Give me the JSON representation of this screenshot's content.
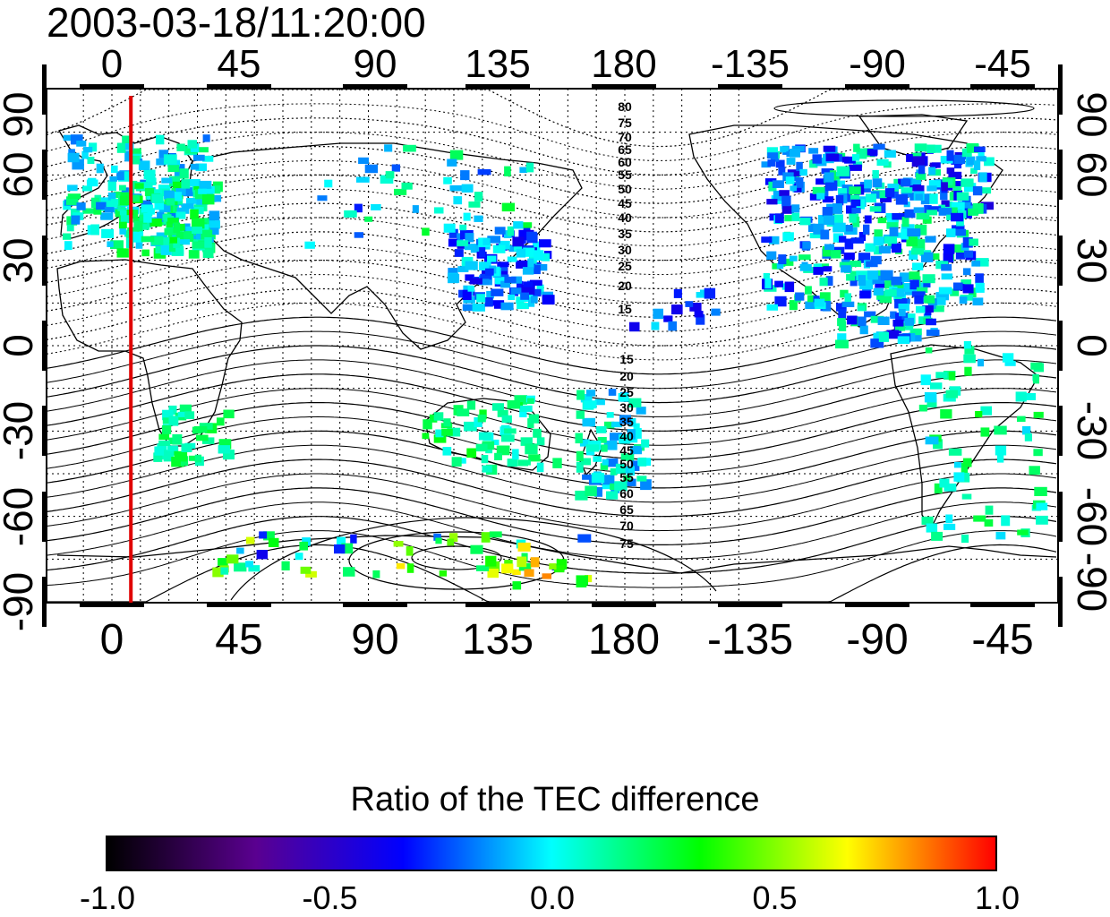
{
  "title": "2003-03-18/11:20:00",
  "colorbar": {
    "title": "Ratio of the TEC difference",
    "ticks": [
      "-1.0",
      "-0.5",
      "0.0",
      "0.5",
      "1.0"
    ],
    "stops": [
      "#000000",
      "#5a0090",
      "#0000ff",
      "#00ffff",
      "#00ff00",
      "#ffff00",
      "#ff0000"
    ]
  },
  "map": {
    "x_ticks_top": [
      "0",
      "45",
      "90",
      "135",
      "180",
      "-135",
      "-90",
      "-45"
    ],
    "x_ticks_bottom": [
      "0",
      "45",
      "90",
      "135",
      "180",
      "-135",
      "-90",
      "-45"
    ],
    "y_ticks_left": [
      "90",
      "60",
      "30",
      "0",
      "-30",
      "-60",
      "-90"
    ],
    "y_ticks_right": [
      "90",
      "60",
      "30",
      "0",
      "-30",
      "-60",
      "-90"
    ],
    "red_line_longitude": 10,
    "contour_labels_north": [
      "80",
      "75",
      "70",
      "65",
      "60",
      "55",
      "50",
      "45",
      "40",
      "35",
      "30",
      "25",
      "20",
      "15"
    ],
    "contour_labels_south": [
      "15",
      "20",
      "25",
      "30",
      "35",
      "40",
      "45",
      "50",
      "55",
      "60",
      "65",
      "70",
      "75"
    ]
  }
}
